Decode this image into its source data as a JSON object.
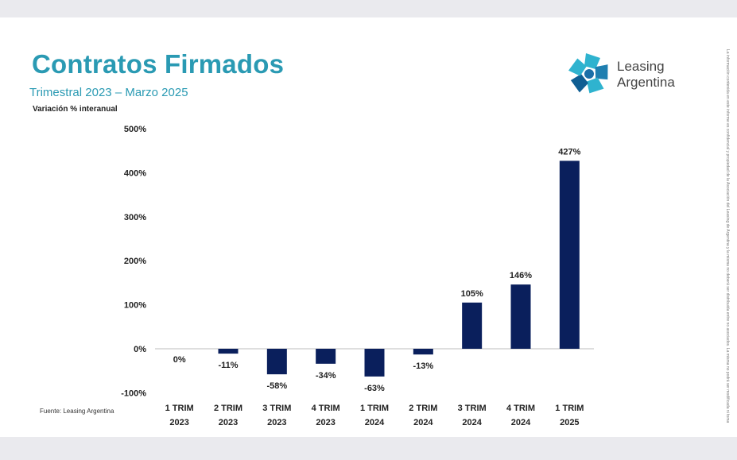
{
  "title": "Contratos Firmados",
  "subtitle": "Trimestral 2023 – Marzo 2025",
  "logo": {
    "line1": "Leasing",
    "line2": "Argentina",
    "icon": "leasing-argentina-star-logo"
  },
  "source": "Fuente: Leasing Argentina",
  "side_note": "La información contenida en este informe es confidencial y propiedad de la Asociación del Leasing de Argentina y la misma no deberá ser distribuida entre no asociados. La misma no podrá ser modificada ni tomada sin el previo consentimiento por escrito de ALA.",
  "colors": {
    "bar": "#0a1f5c",
    "accent": "#2a9ab3"
  },
  "chart_data": {
    "type": "bar",
    "ylabel": "Variación % interanual",
    "ylim": [
      -100,
      500
    ],
    "yticks": [
      -100,
      0,
      100,
      200,
      300,
      400,
      500
    ],
    "yticklabels": [
      "-100%",
      "0%",
      "100%",
      "200%",
      "300%",
      "400%",
      "500%"
    ],
    "categories": [
      [
        "1 TRIM",
        "2023"
      ],
      [
        "2 TRIM",
        "2023"
      ],
      [
        "3 TRIM",
        "2023"
      ],
      [
        "4 TRIM",
        "2023"
      ],
      [
        "1 TRIM",
        "2024"
      ],
      [
        "2 TRIM",
        "2024"
      ],
      [
        "3 TRIM",
        "2024"
      ],
      [
        "4 TRIM",
        "2024"
      ],
      [
        "1 TRIM",
        "2025"
      ]
    ],
    "values": [
      0,
      -11,
      -58,
      -34,
      -63,
      -13,
      105,
      146,
      427
    ],
    "labels": [
      "0%",
      "-11%",
      "-58%",
      "-34%",
      "-63%",
      "-13%",
      "105%",
      "146%",
      "427%"
    ],
    "grid": false
  }
}
